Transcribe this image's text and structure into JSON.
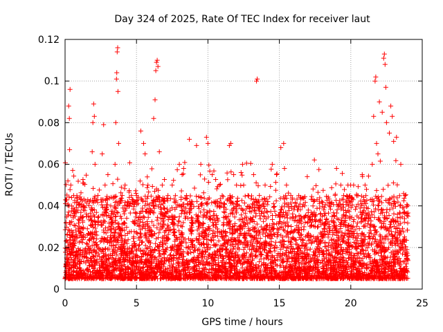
{
  "chart_data": {
    "type": "scatter",
    "title": "Day 324 of 2025, Rate Of TEC Index for receiver laut",
    "xlabel": "GPS time / hours",
    "ylabel": "ROTI / TECUs",
    "xlim": [
      0,
      25
    ],
    "ylim": [
      0,
      0.12
    ],
    "xticks": [
      0,
      5,
      10,
      15,
      20,
      25
    ],
    "xtick_labels": [
      "0",
      "5",
      "10",
      "15",
      "20",
      "25"
    ],
    "yticks": [
      0,
      0.02,
      0.04,
      0.06,
      0.08,
      0.1,
      0.12
    ],
    "ytick_labels": [
      "0",
      "0.02",
      "0.04",
      "0.06",
      "0.08",
      "0.1",
      "0.12"
    ],
    "grid": true,
    "marker": "+",
    "series_color": "#ff0000",
    "x_data_range": [
      0,
      24
    ],
    "series": [
      {
        "points": [
          [
            0.1,
            0.015
          ],
          [
            0.2,
            0.052
          ],
          [
            0.25,
            0.088
          ],
          [
            0.3,
            0.082
          ],
          [
            0.32,
            0.067
          ],
          [
            0.35,
            0.096
          ],
          [
            0.4,
            0.05
          ],
          [
            0.6,
            0.045
          ],
          [
            0.7,
            0.035
          ],
          [
            1.0,
            0.03
          ],
          [
            1.5,
            0.035
          ],
          [
            1.9,
            0.066
          ],
          [
            1.95,
            0.08
          ],
          [
            2.0,
            0.089
          ],
          [
            2.05,
            0.083
          ],
          [
            2.1,
            0.06
          ],
          [
            2.3,
            0.045
          ],
          [
            2.6,
            0.065
          ],
          [
            2.7,
            0.079
          ],
          [
            2.8,
            0.05
          ],
          [
            3.0,
            0.055
          ],
          [
            3.2,
            0.04
          ],
          [
            3.5,
            0.06
          ],
          [
            3.55,
            0.08
          ],
          [
            3.6,
            0.101
          ],
          [
            3.62,
            0.104
          ],
          [
            3.65,
            0.114
          ],
          [
            3.68,
            0.116
          ],
          [
            3.7,
            0.095
          ],
          [
            3.75,
            0.07
          ],
          [
            4.0,
            0.045
          ],
          [
            4.2,
            0.05
          ],
          [
            4.5,
            0.04
          ],
          [
            5.0,
            0.045
          ],
          [
            5.3,
            0.076
          ],
          [
            5.5,
            0.07
          ],
          [
            5.6,
            0.065
          ],
          [
            5.8,
            0.05
          ],
          [
            6.2,
            0.082
          ],
          [
            6.3,
            0.091
          ],
          [
            6.35,
            0.105
          ],
          [
            6.4,
            0.109
          ],
          [
            6.45,
            0.11
          ],
          [
            6.5,
            0.107
          ],
          [
            6.6,
            0.066
          ],
          [
            6.8,
            0.05
          ],
          [
            7.2,
            0.045
          ],
          [
            7.5,
            0.05
          ],
          [
            8.0,
            0.06
          ],
          [
            8.3,
            0.058
          ],
          [
            8.5,
            0.045
          ],
          [
            8.7,
            0.072
          ],
          [
            9.2,
            0.069
          ],
          [
            9.5,
            0.06
          ],
          [
            9.9,
            0.073
          ],
          [
            10.0,
            0.07
          ],
          [
            10.3,
            0.055
          ],
          [
            10.8,
            0.05
          ],
          [
            11.0,
            0.045
          ],
          [
            11.5,
            0.069
          ],
          [
            11.6,
            0.07
          ],
          [
            11.8,
            0.055
          ],
          [
            12.0,
            0.05
          ],
          [
            12.5,
            0.05
          ],
          [
            12.8,
            0.045
          ],
          [
            13.2,
            0.055
          ],
          [
            13.4,
            0.1
          ],
          [
            13.45,
            0.101
          ],
          [
            13.6,
            0.045
          ],
          [
            14.0,
            0.05
          ],
          [
            14.5,
            0.06
          ],
          [
            14.8,
            0.055
          ],
          [
            15.1,
            0.068
          ],
          [
            15.3,
            0.07
          ],
          [
            15.5,
            0.05
          ],
          [
            15.8,
            0.045
          ],
          [
            16.2,
            0.04
          ],
          [
            16.5,
            0.035
          ],
          [
            17.0,
            0.035
          ],
          [
            17.5,
            0.03
          ],
          [
            18.0,
            0.035
          ],
          [
            18.5,
            0.03
          ],
          [
            19.0,
            0.058
          ],
          [
            19.3,
            0.05
          ],
          [
            19.5,
            0.045
          ],
          [
            19.8,
            0.05
          ],
          [
            20.2,
            0.05
          ],
          [
            20.5,
            0.045
          ],
          [
            20.8,
            0.055
          ],
          [
            21.0,
            0.05
          ],
          [
            21.5,
            0.06
          ],
          [
            21.6,
            0.083
          ],
          [
            21.7,
            0.1
          ],
          [
            21.75,
            0.102
          ],
          [
            21.8,
            0.07
          ],
          [
            21.9,
            0.065
          ],
          [
            22.0,
            0.09
          ],
          [
            22.2,
            0.085
          ],
          [
            22.3,
            0.111
          ],
          [
            22.35,
            0.113
          ],
          [
            22.4,
            0.108
          ],
          [
            22.45,
            0.097
          ],
          [
            22.5,
            0.08
          ],
          [
            22.7,
            0.075
          ],
          [
            22.8,
            0.088
          ],
          [
            22.9,
            0.083
          ],
          [
            23.0,
            0.071
          ],
          [
            23.2,
            0.073
          ],
          [
            23.5,
            0.06
          ],
          [
            23.8,
            0.045
          ],
          [
            24.0,
            0.035
          ]
        ],
        "noise_band": {
          "x_range": [
            0,
            24
          ],
          "typical_y_range": [
            0.005,
            0.03
          ],
          "approx_count": 6000
        }
      }
    ]
  }
}
